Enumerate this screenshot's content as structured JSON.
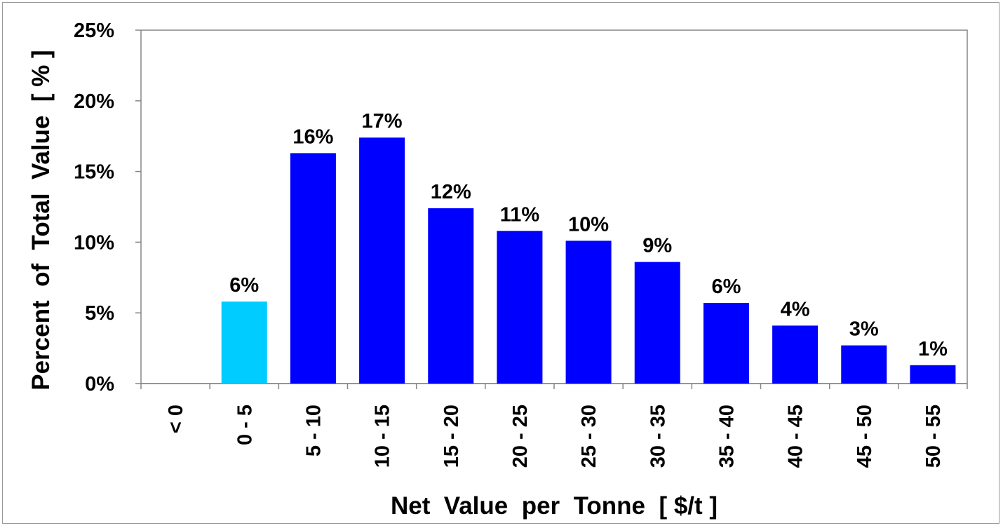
{
  "chart_data": {
    "type": "bar",
    "title": "",
    "xlabel": "Net  Value  per  Tonne  [ $/t ]",
    "ylabel": "Percent  of  Total  Value  [ % ]",
    "categories": [
      "< 0",
      "0 - 5",
      "5 - 10",
      "10 - 15",
      "15 - 20",
      "20 - 25",
      "25 - 30",
      "30 - 35",
      "35 - 40",
      "40 - 45",
      "45 - 50",
      "50 - 55"
    ],
    "values": [
      0,
      5.8,
      16.3,
      17.4,
      12.4,
      10.8,
      10.1,
      8.6,
      5.7,
      4.1,
      2.7,
      1.3
    ],
    "data_labels": [
      "",
      "6%",
      "16%",
      "17%",
      "12%",
      "11%",
      "10%",
      "9%",
      "6%",
      "4%",
      "3%",
      "1%"
    ],
    "bar_colors": [
      "#0000ff",
      "#00ccff",
      "#0000ff",
      "#0000ff",
      "#0000ff",
      "#0000ff",
      "#0000ff",
      "#0000ff",
      "#0000ff",
      "#0000ff",
      "#0000ff",
      "#0000ff"
    ],
    "ylim": [
      0,
      25
    ],
    "yticks": [
      0,
      5,
      10,
      15,
      20,
      25
    ],
    "ytick_labels": [
      "0%",
      "5%",
      "10%",
      "15%",
      "20%",
      "25%"
    ],
    "grid": false,
    "legend": "none"
  }
}
